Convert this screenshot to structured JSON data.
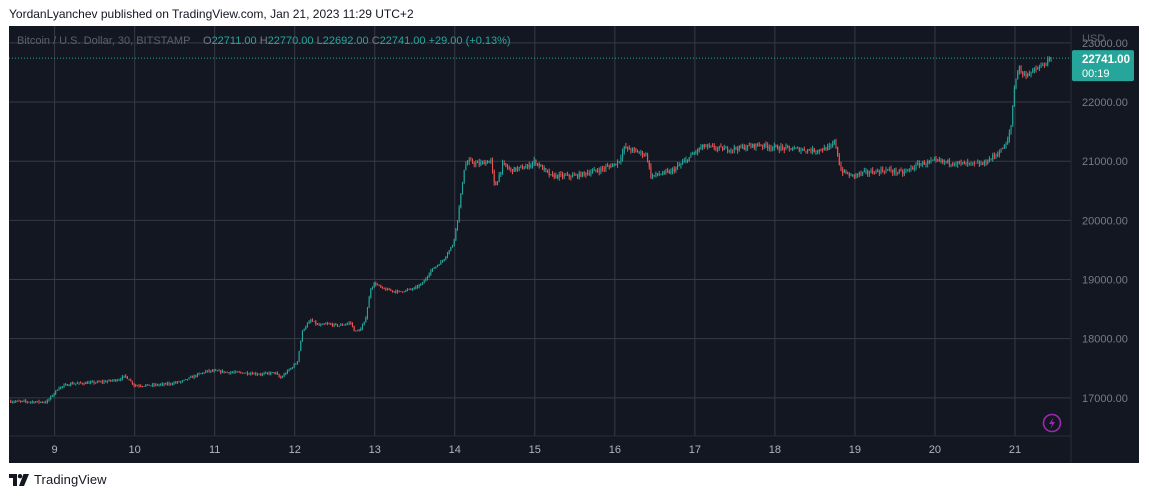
{
  "header": {
    "text": "YordanLyanchev published on TradingView.com, Jan 21, 2023 11:29 UTC+2"
  },
  "footer": {
    "brand": "TradingView"
  },
  "chart_data": {
    "type": "candlestick",
    "legend": {
      "symbol": "Bitcoin / U.S. Dollar, 30, BITSTAMP",
      "o_label": "O",
      "o_value": "22711.00",
      "h_label": "H",
      "h_value": "22770.00",
      "l_label": "L",
      "l_value": "22692.00",
      "c_label": "C",
      "c_value": "22741.00",
      "change": "+29.00 (+0.13%)"
    },
    "currency": "USD",
    "y_range": [
      16355,
      23285
    ],
    "y_ticks": [
      "23000.00",
      "22000.00",
      "21000.00",
      "20000.00",
      "19000.00",
      "18000.00",
      "17000.00"
    ],
    "x_range": [
      8.43,
      21.7
    ],
    "x_ticks": [
      "9",
      "10",
      "11",
      "12",
      "13",
      "14",
      "15",
      "16",
      "17",
      "18",
      "19",
      "20",
      "21"
    ],
    "last_price": {
      "value": 22741,
      "label": "22741.00",
      "countdown": "00:19"
    },
    "close_path": [
      [
        8.43,
        16940
      ],
      [
        8.9,
        16930
      ],
      [
        9.05,
        17170
      ],
      [
        9.2,
        17240
      ],
      [
        9.4,
        17250
      ],
      [
        9.6,
        17270
      ],
      [
        9.8,
        17310
      ],
      [
        9.88,
        17370
      ],
      [
        9.93,
        17310
      ],
      [
        10.0,
        17210
      ],
      [
        10.2,
        17210
      ],
      [
        10.4,
        17230
      ],
      [
        10.6,
        17280
      ],
      [
        10.75,
        17370
      ],
      [
        10.9,
        17450
      ],
      [
        11.0,
        17450
      ],
      [
        11.2,
        17430
      ],
      [
        11.4,
        17420
      ],
      [
        11.6,
        17400
      ],
      [
        11.75,
        17430
      ],
      [
        11.82,
        17330
      ],
      [
        11.95,
        17500
      ],
      [
        12.03,
        17600
      ],
      [
        12.1,
        18150
      ],
      [
        12.2,
        18310
      ],
      [
        12.3,
        18220
      ],
      [
        12.4,
        18250
      ],
      [
        12.55,
        18220
      ],
      [
        12.7,
        18270
      ],
      [
        12.75,
        18120
      ],
      [
        12.82,
        18150
      ],
      [
        12.88,
        18300
      ],
      [
        12.95,
        18850
      ],
      [
        13.0,
        18940
      ],
      [
        13.1,
        18840
      ],
      [
        13.3,
        18790
      ],
      [
        13.5,
        18850
      ],
      [
        13.6,
        18940
      ],
      [
        13.7,
        19150
      ],
      [
        13.85,
        19320
      ],
      [
        13.98,
        19600
      ],
      [
        14.05,
        20150
      ],
      [
        14.12,
        20900
      ],
      [
        14.17,
        21000
      ],
      [
        14.3,
        20950
      ],
      [
        14.45,
        21010
      ],
      [
        14.5,
        20550
      ],
      [
        14.6,
        20950
      ],
      [
        14.7,
        20850
      ],
      [
        14.9,
        20900
      ],
      [
        15.0,
        21000
      ],
      [
        15.2,
        20750
      ],
      [
        15.5,
        20750
      ],
      [
        15.8,
        20850
      ],
      [
        16.0,
        20950
      ],
      [
        16.05,
        21000
      ],
      [
        16.12,
        21230
      ],
      [
        16.3,
        21150
      ],
      [
        16.4,
        21100
      ],
      [
        16.45,
        20750
      ],
      [
        16.7,
        20820
      ],
      [
        16.88,
        21000
      ],
      [
        17.0,
        21150
      ],
      [
        17.1,
        21250
      ],
      [
        17.4,
        21200
      ],
      [
        17.6,
        21230
      ],
      [
        17.8,
        21280
      ],
      [
        18.0,
        21230
      ],
      [
        18.3,
        21200
      ],
      [
        18.5,
        21180
      ],
      [
        18.7,
        21230
      ],
      [
        18.75,
        21350
      ],
      [
        18.82,
        20850
      ],
      [
        18.95,
        20750
      ],
      [
        19.1,
        20800
      ],
      [
        19.4,
        20850
      ],
      [
        19.6,
        20800
      ],
      [
        19.8,
        20950
      ],
      [
        20.0,
        21000
      ],
      [
        20.2,
        20980
      ],
      [
        20.4,
        20950
      ],
      [
        20.6,
        20950
      ],
      [
        20.8,
        21150
      ],
      [
        20.9,
        21300
      ],
      [
        20.95,
        21600
      ],
      [
        21.0,
        22350
      ],
      [
        21.05,
        22600
      ],
      [
        21.1,
        22450
      ],
      [
        21.2,
        22500
      ],
      [
        21.35,
        22620
      ],
      [
        21.47,
        22741
      ]
    ]
  }
}
